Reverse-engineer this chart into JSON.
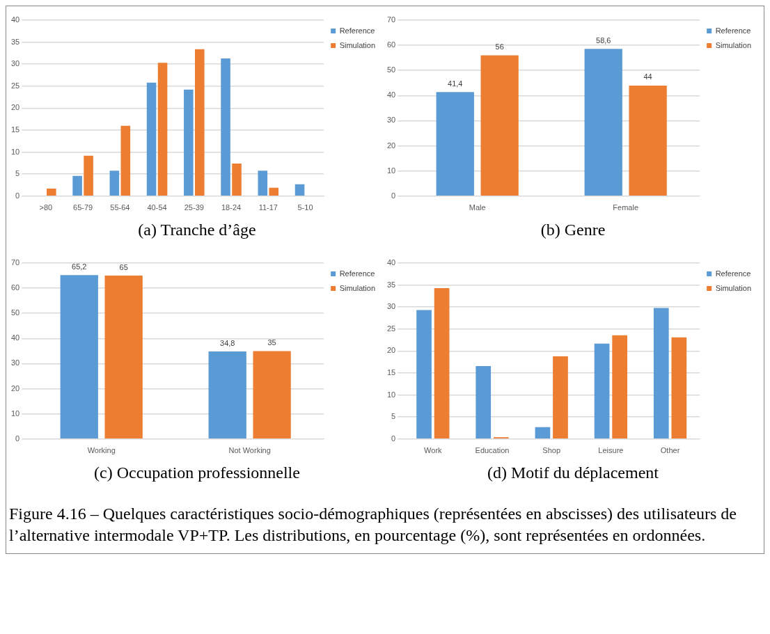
{
  "chart_data": [
    {
      "type": "bar",
      "title": "(a) Tranche d’âge",
      "categories": [
        ">80",
        "65-79",
        "55-64",
        "40-54",
        "25-39",
        "18-24",
        "11-17",
        "5-10"
      ],
      "series": [
        {
          "name": "Reference",
          "color": "#5b9bd5",
          "values": [
            0,
            4.6,
            5.8,
            25.8,
            24.2,
            31.3,
            5.8,
            2.7
          ]
        },
        {
          "name": "Simulation",
          "color": "#ed7d31",
          "values": [
            1.7,
            9.2,
            16.0,
            30.3,
            33.4,
            7.4,
            1.9,
            0
          ]
        }
      ],
      "ylim": [
        0,
        40
      ],
      "yticks": [
        0,
        5,
        10,
        15,
        20,
        25,
        30,
        35,
        40
      ],
      "grid": "y",
      "legend": "top right"
    },
    {
      "type": "bar",
      "title": "(b) Genre",
      "categories": [
        "Male",
        "Female"
      ],
      "series": [
        {
          "name": "Reference",
          "color": "#5b9bd5",
          "values": [
            41.4,
            58.6
          ],
          "value_labels": [
            "41,4",
            "58,6"
          ]
        },
        {
          "name": "Simulation",
          "color": "#ed7d31",
          "values": [
            56,
            44
          ],
          "value_labels": [
            "56",
            "44"
          ]
        }
      ],
      "ylim": [
        0,
        70
      ],
      "yticks": [
        0,
        10,
        20,
        30,
        40,
        50,
        60,
        70
      ],
      "grid": "y",
      "legend": "top right"
    },
    {
      "type": "bar",
      "title": "(c) Occupation professionnelle",
      "categories": [
        "Working",
        "Not Working"
      ],
      "series": [
        {
          "name": "Reference",
          "color": "#5b9bd5",
          "values": [
            65.2,
            34.8
          ],
          "value_labels": [
            "65,2",
            "34,8"
          ]
        },
        {
          "name": "Simulation",
          "color": "#ed7d31",
          "values": [
            65,
            35
          ],
          "value_labels": [
            "65",
            "35"
          ]
        }
      ],
      "ylim": [
        0,
        70
      ],
      "yticks": [
        0,
        10,
        20,
        30,
        40,
        50,
        60,
        70
      ],
      "grid": "y",
      "legend": "top right"
    },
    {
      "type": "bar",
      "title": "(d) Motif du déplacement",
      "categories": [
        "Work",
        "Education",
        "Shop",
        "Leisure",
        "Other"
      ],
      "series": [
        {
          "name": "Reference",
          "color": "#5b9bd5",
          "values": [
            29.3,
            16.6,
            2.7,
            21.7,
            29.8
          ]
        },
        {
          "name": "Simulation",
          "color": "#ed7d31",
          "values": [
            34.3,
            0.4,
            18.8,
            23.6,
            23.1
          ]
        }
      ],
      "ylim": [
        0,
        40
      ],
      "yticks": [
        0,
        5,
        10,
        15,
        20,
        25,
        30,
        35,
        40
      ],
      "grid": "y",
      "legend": "top right",
      "annotations": [
        "Figure 4.16 – Quelques caractéristiques socio-démographiques (représentées en abscisses) des utilisateurs de l’alternative intermodale VP+TP. Les distributions, en pourcentage (%), sont représentées en ordonnées."
      ]
    }
  ]
}
